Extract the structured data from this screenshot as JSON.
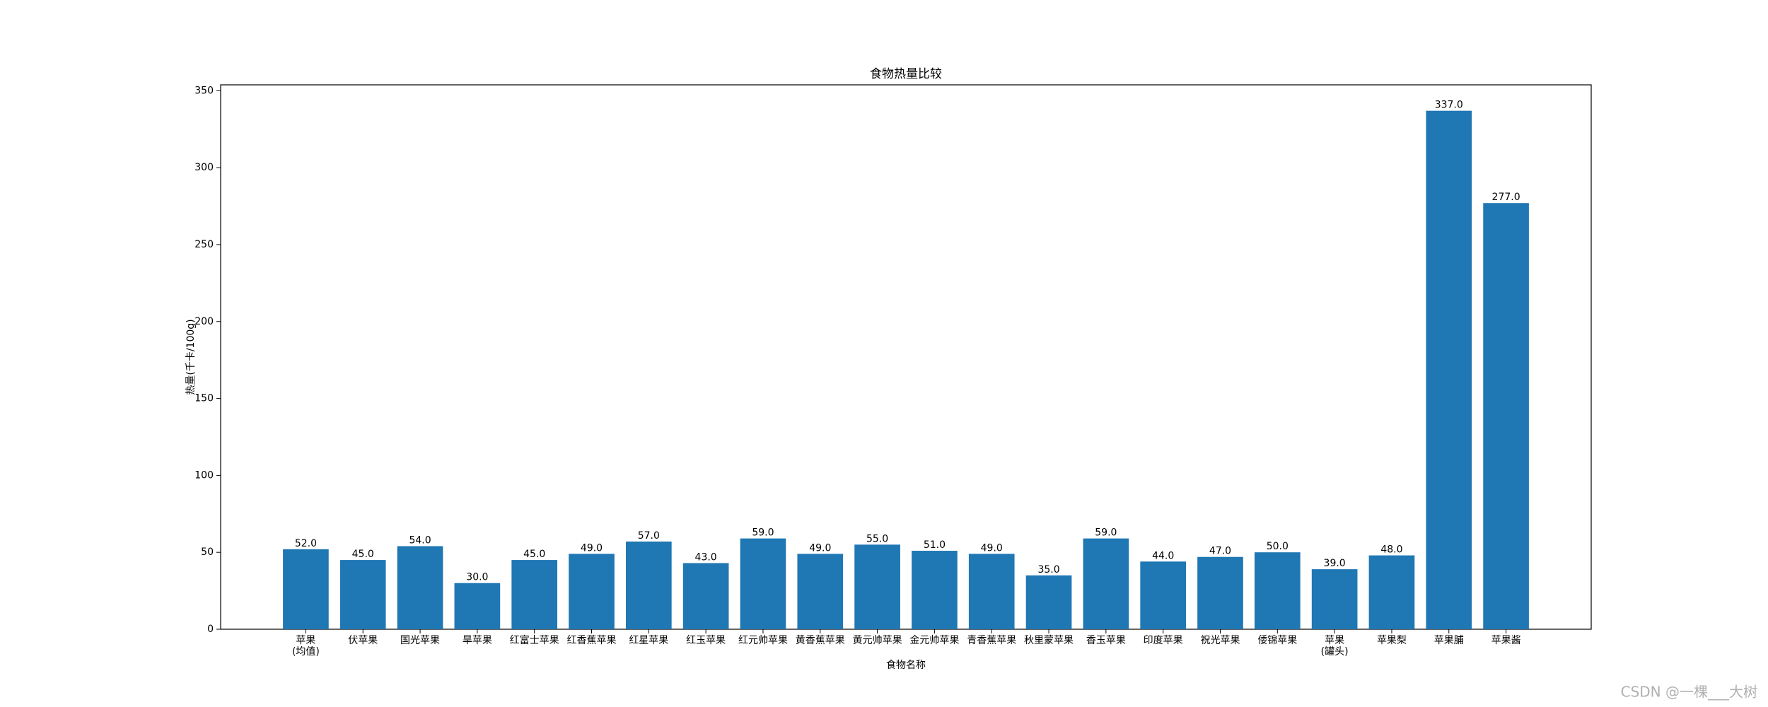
{
  "chart_data": {
    "type": "bar",
    "title": "食物热量比较",
    "x_label": "食物名称",
    "y_label": "热量(千卡/100g)",
    "categories": [
      "苹果\n(均值)",
      "伏苹果",
      "国光苹果",
      "旱苹果",
      "红富士苹果",
      "红香蕉苹果",
      "红星苹果",
      "红玉苹果",
      "红元帅苹果",
      "黄香蕉苹果",
      "黄元帅苹果",
      "金元帅苹果",
      "青香蕉苹果",
      "秋里蒙苹果",
      "香玉苹果",
      "印度苹果",
      "祝光苹果",
      "倭锦苹果",
      "苹果\n(罐头)",
      "苹果梨",
      "苹果脯",
      "苹果酱"
    ],
    "values": [
      52,
      45,
      54,
      30,
      45,
      49,
      57,
      43,
      59,
      49,
      55,
      51,
      49,
      35,
      59,
      44,
      47,
      50,
      39,
      48,
      337,
      277
    ],
    "value_labels": [
      "52.0",
      "45.0",
      "54.0",
      "30.0",
      "45.0",
      "49.0",
      "57.0",
      "43.0",
      "59.0",
      "49.0",
      "55.0",
      "51.0",
      "49.0",
      "35.0",
      "59.0",
      "44.0",
      "47.0",
      "50.0",
      "39.0",
      "48.0",
      "337.0",
      "277.0"
    ],
    "color": "#1f77b4",
    "ylim": [
      0,
      353.85
    ],
    "yticks": [
      0,
      50,
      100,
      150,
      200,
      250,
      300,
      350
    ],
    "grid": false
  },
  "watermark": "CSDN @一棵___大树"
}
